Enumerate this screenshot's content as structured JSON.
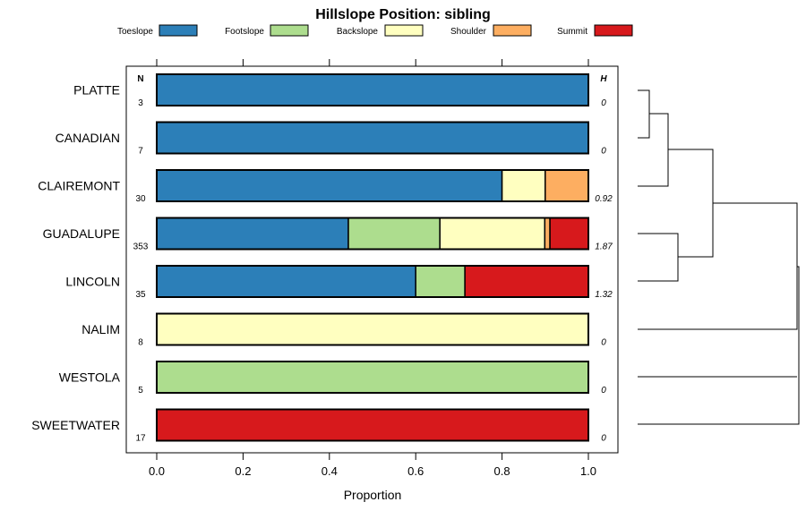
{
  "chart_data": {
    "type": "stacked-bar",
    "title": "Hillslope Position: sibling",
    "xlabel": "Proportion",
    "xlim": [
      0,
      1
    ],
    "xticks": [
      "0.0",
      "0.2",
      "0.4",
      "0.6",
      "0.8",
      "1.0"
    ],
    "n_header": "N",
    "h_header": "H",
    "categories": [
      "Toeslope",
      "Footslope",
      "Backslope",
      "Shoulder",
      "Summit"
    ],
    "colors": [
      "#2c7fb8",
      "#addd8e",
      "#ffffc0",
      "#fdae61",
      "#d7191c"
    ],
    "rows": [
      {
        "label": "PLATTE",
        "n": "3",
        "h": "0",
        "values": [
          1.0,
          0,
          0,
          0,
          0
        ]
      },
      {
        "label": "CANADIAN",
        "n": "7",
        "h": "0",
        "values": [
          1.0,
          0,
          0,
          0,
          0
        ]
      },
      {
        "label": "CLAIREMONT",
        "n": "30",
        "h": "0.92",
        "values": [
          0.8,
          0,
          0.1,
          0.1,
          0
        ]
      },
      {
        "label": "GUADALUPE",
        "n": "353",
        "h": "1.87",
        "values": [
          0.444,
          0.212,
          0.243,
          0.012,
          0.089
        ]
      },
      {
        "label": "LINCOLN",
        "n": "35",
        "h": "1.32",
        "values": [
          0.6,
          0.114,
          0,
          0,
          0.286
        ]
      },
      {
        "label": "NALIM",
        "n": "8",
        "h": "0",
        "values": [
          0,
          0,
          1.0,
          0,
          0
        ]
      },
      {
        "label": "WESTOLA",
        "n": "5",
        "h": "0",
        "values": [
          0,
          1.0,
          0,
          0,
          0
        ]
      },
      {
        "label": "SWEETWATER",
        "n": "17",
        "h": "0",
        "values": [
          0,
          0,
          0,
          0,
          1.0
        ]
      }
    ]
  }
}
